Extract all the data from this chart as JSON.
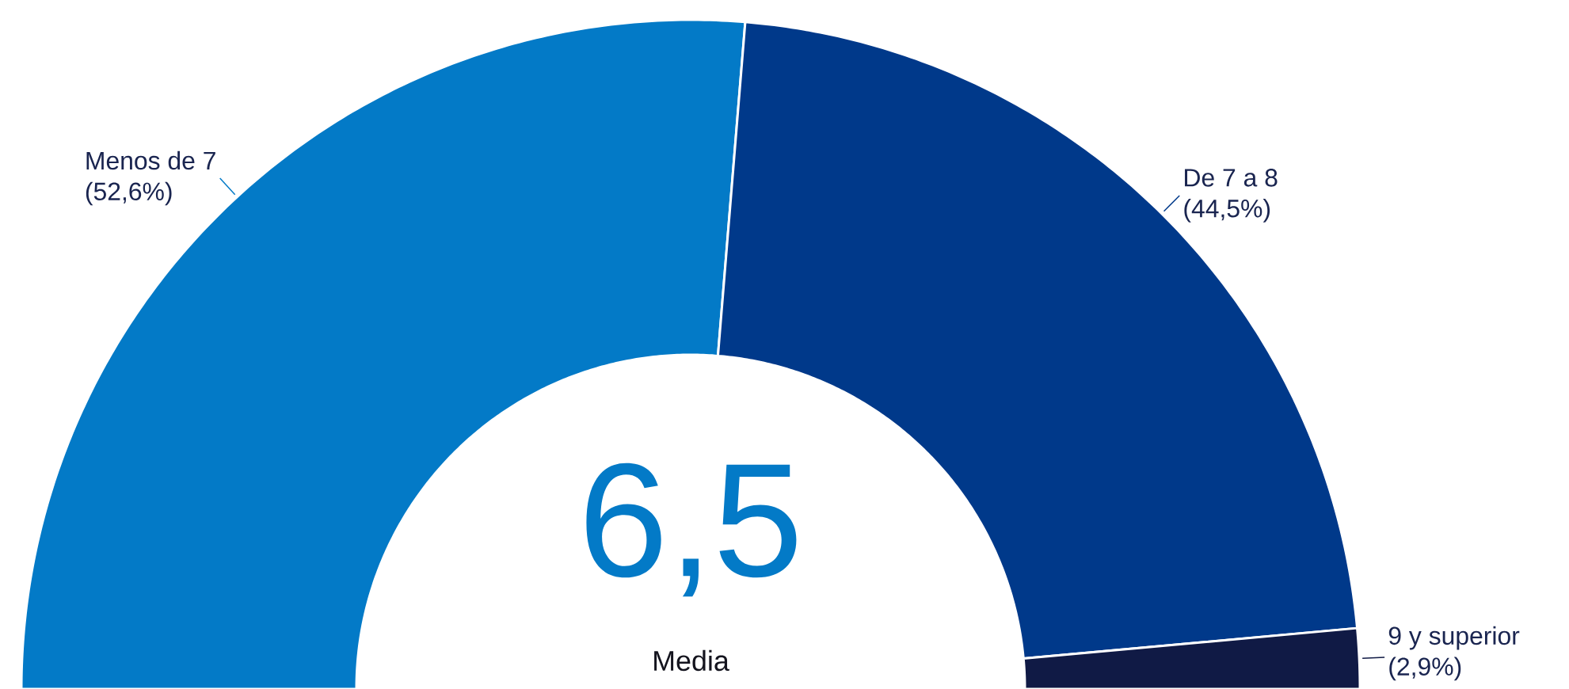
{
  "chart_data": {
    "type": "donut",
    "categories": [
      "Menos de 7",
      "De 7 a 8",
      "9 y superior"
    ],
    "values": [
      52.6,
      44.5,
      2.9
    ],
    "colors": [
      "#037ac7",
      "#00398a",
      "#101a45"
    ],
    "value_labels": [
      "(52,6%)",
      "(44,5%)",
      "(2,9%)"
    ],
    "annotations": [
      "6,5",
      "Media"
    ]
  }
}
